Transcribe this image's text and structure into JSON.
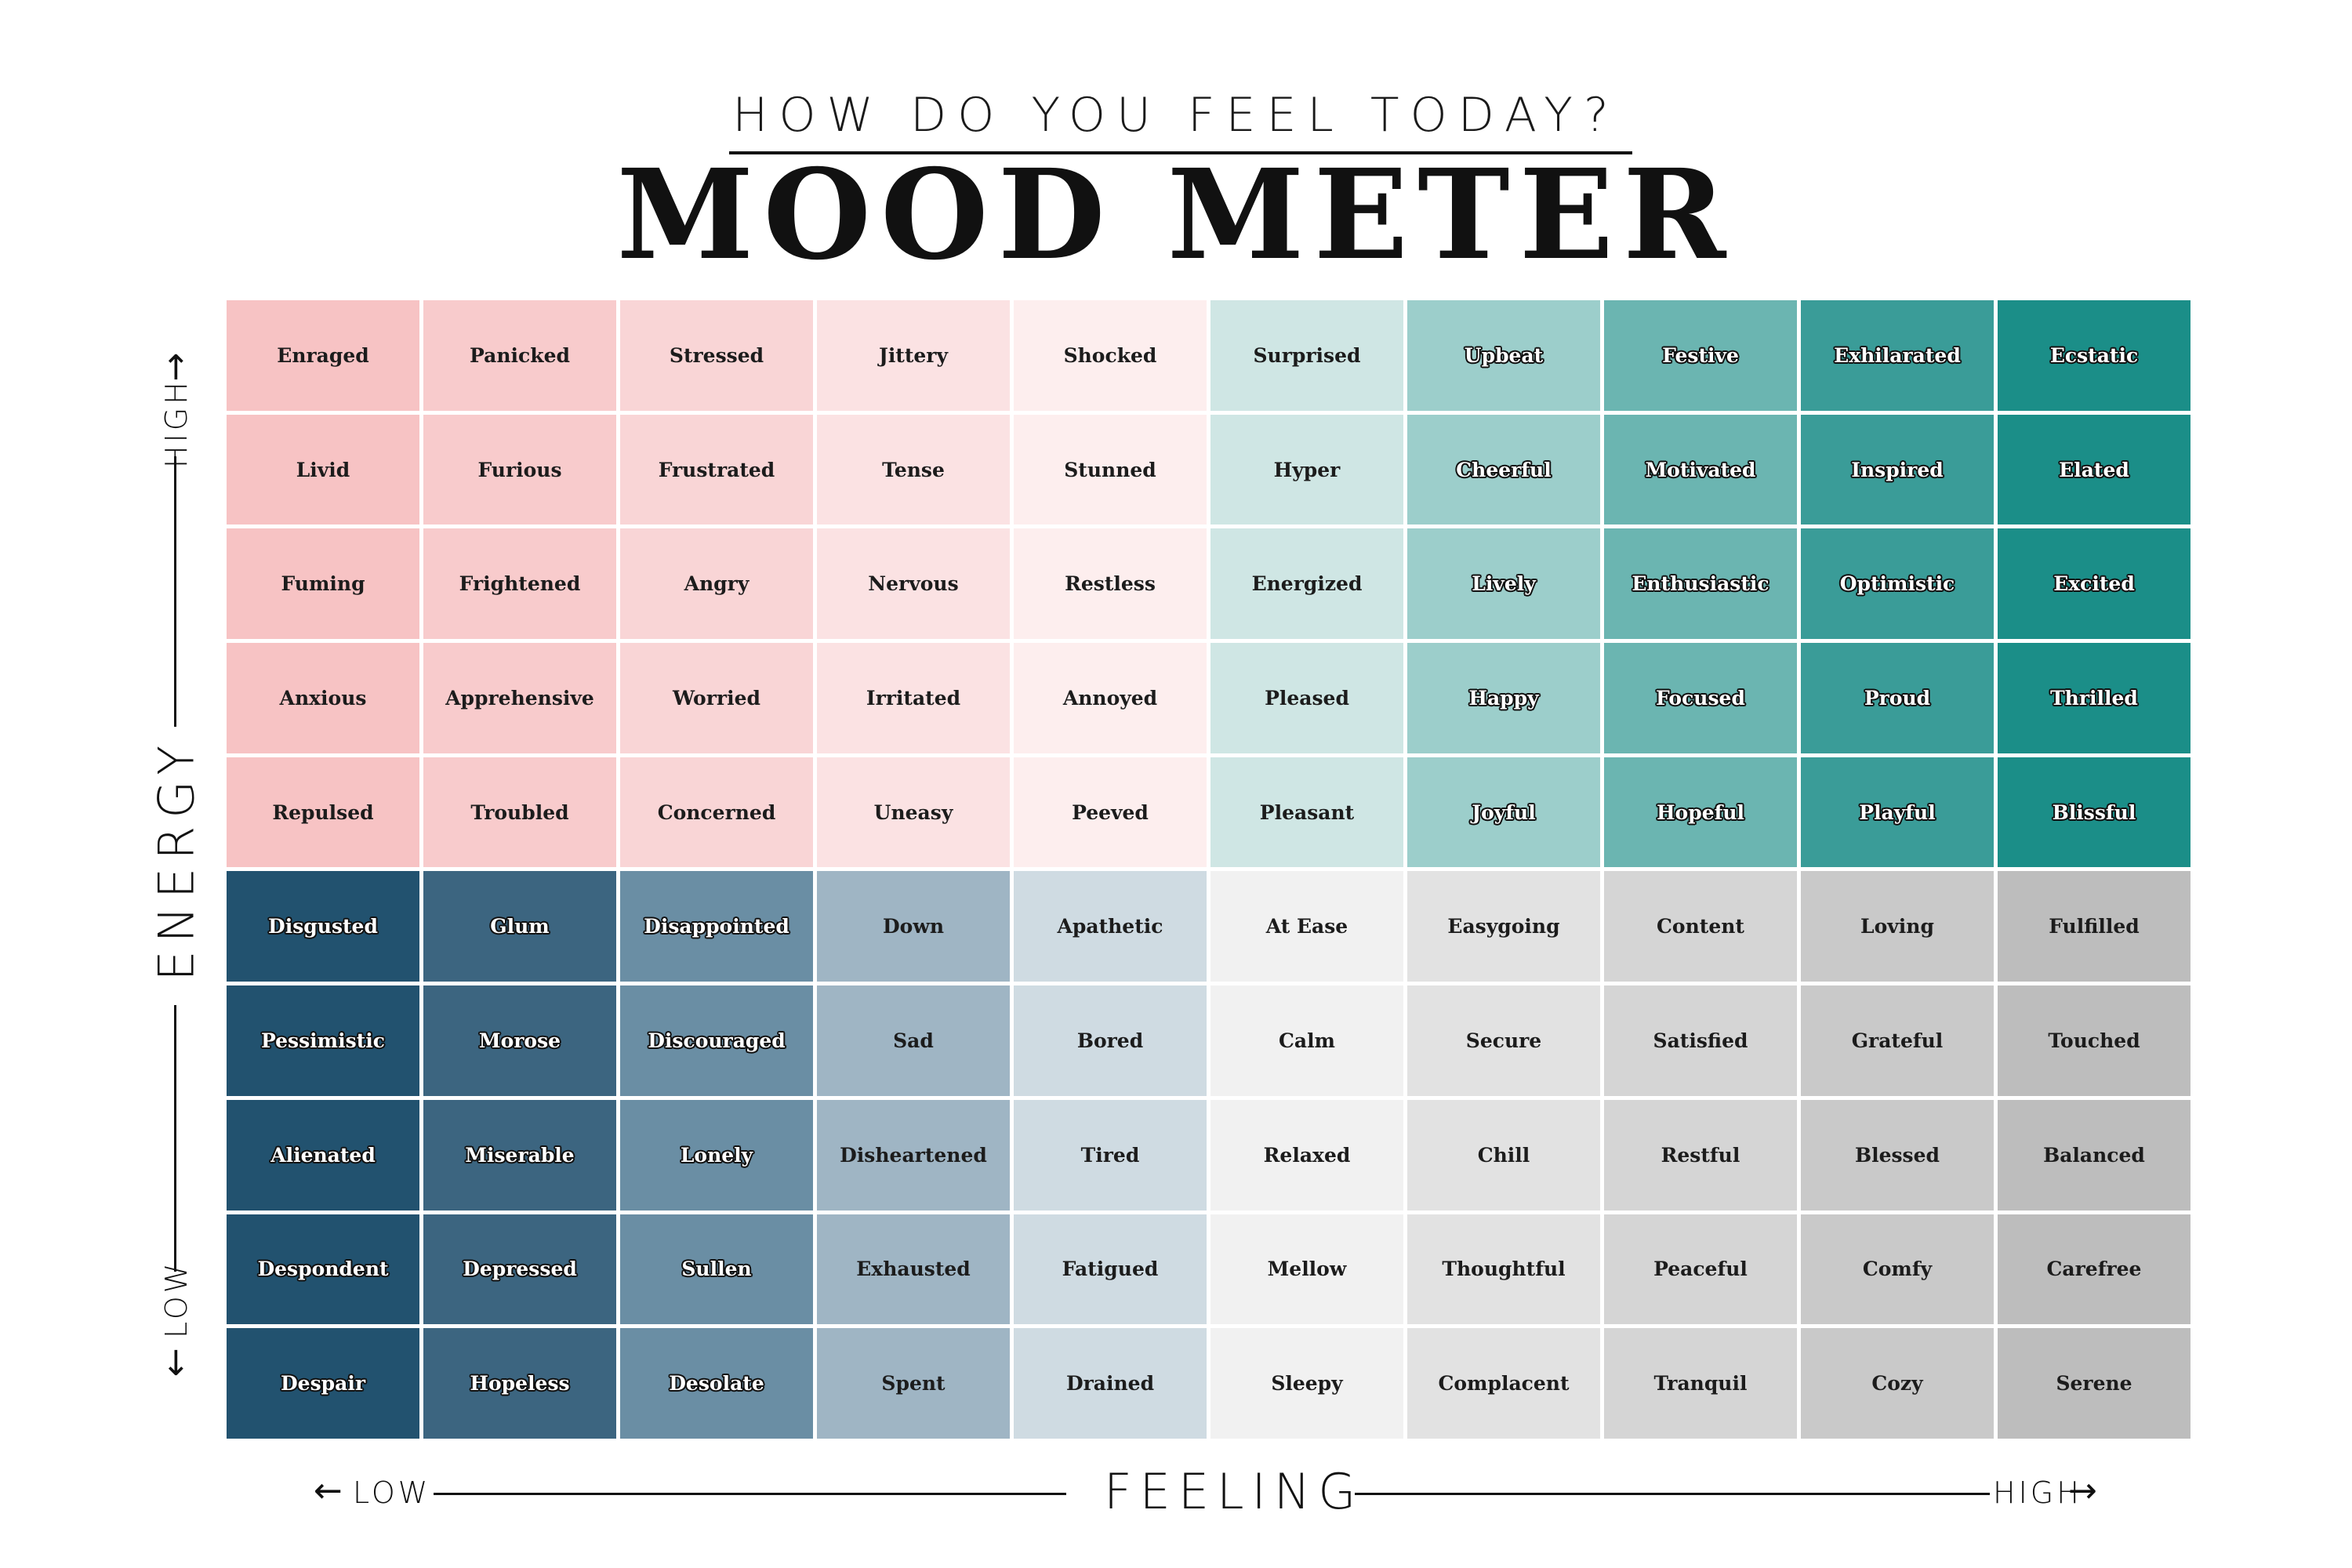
{
  "header": {
    "subtitle": "HOW DO YOU FEEL TODAY?",
    "title": "MOOD METER"
  },
  "axes": {
    "x_label": "FEELING",
    "x_low": "LOW",
    "x_high": "HIGH",
    "y_label": "ENERGY",
    "y_low": "LOW",
    "y_high": "HIGH"
  },
  "chart_data": {
    "type": "table",
    "title": "MOOD METER",
    "xlabel": "FEELING",
    "ylabel": "ENERGY",
    "rows": [
      [
        "Enraged",
        "Panicked",
        "Stressed",
        "Jittery",
        "Shocked",
        "Surprised",
        "Upbeat",
        "Festive",
        "Exhilarated",
        "Ecstatic"
      ],
      [
        "Livid",
        "Furious",
        "Frustrated",
        "Tense",
        "Stunned",
        "Hyper",
        "Cheerful",
        "Motivated",
        "Inspired",
        "Elated"
      ],
      [
        "Fuming",
        "Frightened",
        "Angry",
        "Nervous",
        "Restless",
        "Energized",
        "Lively",
        "Enthusiastic",
        "Optimistic",
        "Excited"
      ],
      [
        "Anxious",
        "Apprehensive",
        "Worried",
        "Irritated",
        "Annoyed",
        "Pleased",
        "Happy",
        "Focused",
        "Proud",
        "Thrilled"
      ],
      [
        "Repulsed",
        "Troubled",
        "Concerned",
        "Uneasy",
        "Peeved",
        "Pleasant",
        "Joyful",
        "Hopeful",
        "Playful",
        "Blissful"
      ],
      [
        "Disgusted",
        "Glum",
        "Disappointed",
        "Down",
        "Apathetic",
        "At Ease",
        "Easygoing",
        "Content",
        "Loving",
        "Fulfilled"
      ],
      [
        "Pessimistic",
        "Morose",
        "Discouraged",
        "Sad",
        "Bored",
        "Calm",
        "Secure",
        "Satisfied",
        "Grateful",
        "Touched"
      ],
      [
        "Alienated",
        "Miserable",
        "Lonely",
        "Disheartened",
        "Tired",
        "Relaxed",
        "Chill",
        "Restful",
        "Blessed",
        "Balanced"
      ],
      [
        "Despondent",
        "Depressed",
        "Sullen",
        "Exhausted",
        "Fatigued",
        "Mellow",
        "Thoughtful",
        "Peaceful",
        "Comfy",
        "Carefree"
      ],
      [
        "Despair",
        "Hopeless",
        "Desolate",
        "Spent",
        "Drained",
        "Sleepy",
        "Complacent",
        "Tranquil",
        "Cozy",
        "Serene"
      ]
    ],
    "quadrant_colors": {
      "high_energy_low_feeling": [
        "#f7c3c4",
        "#f8cbcc",
        "#f9d5d6",
        "#fbe2e3",
        "#fdeeee"
      ],
      "high_energy_high_feeling": [
        "#cfe6e4",
        "#9ccecb",
        "#6bb5b1",
        "#3a9c98",
        "#1b8e88"
      ],
      "low_energy_low_feeling": [
        "#22526f",
        "#3c6580",
        "#6a8ea4",
        "#9fb5c4",
        "#cfdbe2"
      ],
      "low_energy_high_feeling": [
        "#f1f1f1",
        "#e2e2e2",
        "#d5d5d5",
        "#c9c9c9",
        "#bdbdbd"
      ]
    }
  }
}
